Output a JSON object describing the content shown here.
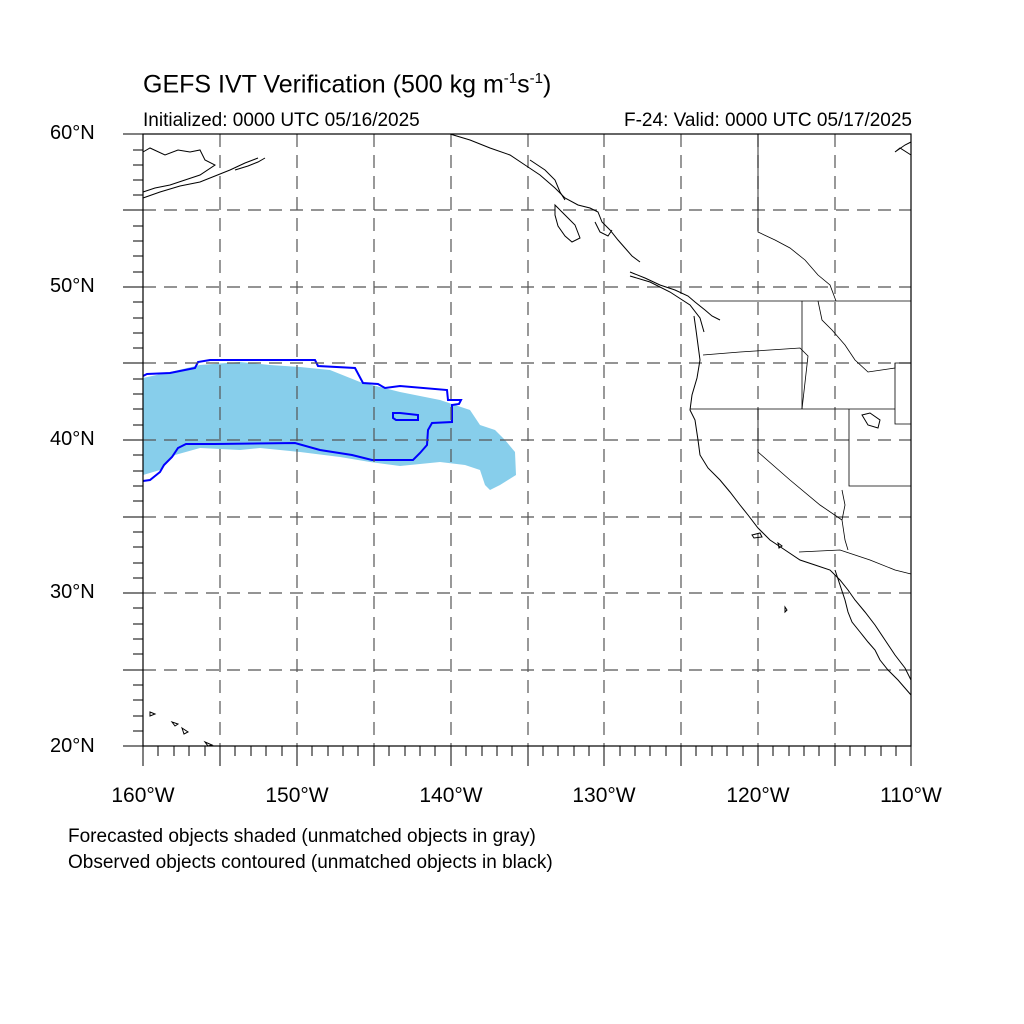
{
  "title": {
    "main": "GEFS IVT Verification (500 kg m",
    "sup1": "-1",
    "mid": "s",
    "sup2": "-1",
    "end": ")"
  },
  "subtitle_left": "Initialized: 0000 UTC 05/16/2025",
  "subtitle_right": "F-24: Valid: 0000 UTC 05/17/2025",
  "lat_labels": [
    "60°N",
    "50°N",
    "40°N",
    "30°N",
    "20°N"
  ],
  "lon_labels": [
    "160°W",
    "150°W",
    "140°W",
    "130°W",
    "120°W",
    "110°W"
  ],
  "notes": [
    "Forecasted objects shaded (unmatched objects in gray)",
    "Observed objects contoured (unmatched objects in black)"
  ],
  "colors": {
    "forecast_fill": "#87ceeb",
    "observed_contour": "#0000ff",
    "coastline": "#000000",
    "gridline": "#555555"
  }
}
